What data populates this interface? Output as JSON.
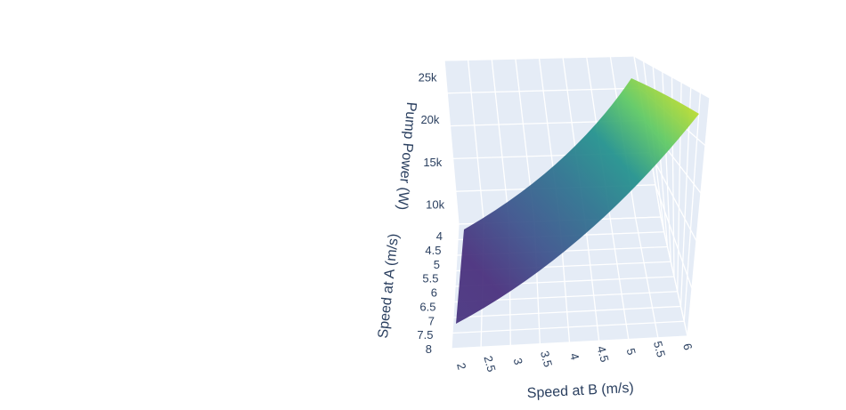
{
  "chart_data": {
    "type": "surface",
    "title": "",
    "colorscale": "Viridis",
    "colors": {
      "pane": "#e5ecf6",
      "grid": "#ffffff",
      "text": "#2a3f5f",
      "background": "#ffffff"
    },
    "x_axis": {
      "label": "Speed at B (m/s)",
      "ticks": [
        "2",
        "2.5",
        "3",
        "3.5",
        "4",
        "4.5",
        "5",
        "5.5",
        "6"
      ],
      "range": [
        2,
        6
      ]
    },
    "y_axis": {
      "label": "Speed at A (m/s)",
      "ticks": [
        "4",
        "4.5",
        "5",
        "5.5",
        "6",
        "6.5",
        "7",
        "7.5",
        "8"
      ],
      "range": [
        4,
        8
      ]
    },
    "z_axis": {
      "label": "Pump Power (W)",
      "ticks": [
        "10k",
        "15k",
        "20k",
        "25k"
      ],
      "range": [
        5000,
        26000
      ]
    },
    "x": [
      2,
      6
    ],
    "y": [
      4,
      8
    ],
    "z": [
      [
        6500,
        24000
      ],
      [
        5000,
        22500
      ]
    ]
  }
}
